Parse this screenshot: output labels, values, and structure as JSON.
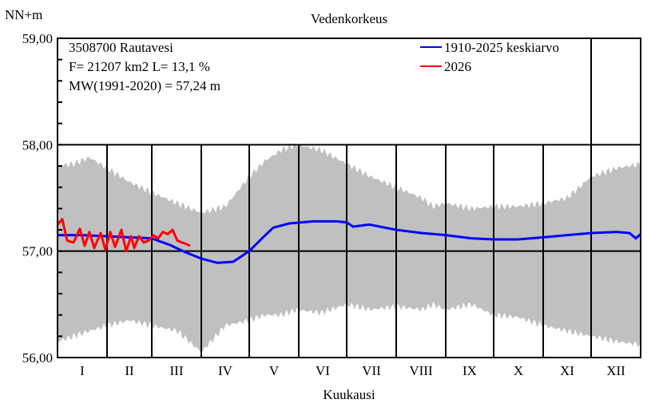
{
  "chart_data": {
    "type": "area",
    "title": "Vedenkorkeus",
    "ylabel": "NN+m",
    "xlabel": "Kuukausi",
    "ylim": [
      56,
      59
    ],
    "yticks": [
      "56,00",
      "57,00",
      "58,00",
      "59,00"
    ],
    "ytick_values": [
      56,
      57,
      58,
      59
    ],
    "months": [
      "I",
      "II",
      "III",
      "IV",
      "V",
      "VI",
      "VII",
      "VIII",
      "IX",
      "X",
      "XI",
      "XII"
    ],
    "info": [
      "3508700 Rautavesi",
      "F=  21207 km2 L=  13,1 %",
      "MW(1991-2020) = 57,24 m"
    ],
    "colors": {
      "band": "#c0c0c0",
      "mean": "#0000ff",
      "current": "#ff0000"
    },
    "band": {
      "day": [
        0,
        10,
        20,
        31,
        45,
        59,
        75,
        90,
        105,
        120,
        130,
        140,
        150,
        165,
        181,
        196,
        212,
        228,
        235,
        243,
        259,
        273,
        288,
        304,
        319,
        334,
        350,
        365
      ],
      "max": [
        57.8,
        57.82,
        57.88,
        57.78,
        57.65,
        57.55,
        57.45,
        57.36,
        57.42,
        57.7,
        57.85,
        57.95,
        58.0,
        57.95,
        57.82,
        57.7,
        57.6,
        57.5,
        57.42,
        57.45,
        57.4,
        57.42,
        57.42,
        57.45,
        57.5,
        57.7,
        57.78,
        57.82
      ],
      "min": [
        56.15,
        56.2,
        56.25,
        56.3,
        56.35,
        56.3,
        56.25,
        56.05,
        56.3,
        56.35,
        56.4,
        56.4,
        56.45,
        56.42,
        56.5,
        56.45,
        56.48,
        56.45,
        56.5,
        56.45,
        56.5,
        56.4,
        56.38,
        56.3,
        56.25,
        56.2,
        56.15,
        56.12
      ]
    },
    "series": [
      {
        "name": "1910-2025 keskiarvo",
        "color": "#0000ff",
        "day": [
          0,
          15,
          31,
          45,
          59,
          70,
          80,
          90,
          100,
          110,
          120,
          128,
          135,
          145,
          160,
          175,
          181,
          185,
          195,
          212,
          228,
          243,
          259,
          273,
          288,
          304,
          319,
          334,
          350,
          358,
          362,
          365
        ],
        "values": [
          57.15,
          57.15,
          57.14,
          57.13,
          57.12,
          57.06,
          56.99,
          56.93,
          56.89,
          56.9,
          57.0,
          57.12,
          57.22,
          57.26,
          57.28,
          57.28,
          57.27,
          57.23,
          57.25,
          57.2,
          57.17,
          57.15,
          57.12,
          57.11,
          57.11,
          57.13,
          57.15,
          57.17,
          57.18,
          57.17,
          57.12,
          57.16
        ]
      },
      {
        "name": "2026",
        "color": "#ff0000",
        "day": [
          0,
          3,
          6,
          10,
          14,
          17,
          20,
          23,
          27,
          30,
          33,
          36,
          40,
          43,
          46,
          48,
          51,
          54,
          57,
          60,
          63,
          66,
          69,
          72,
          75,
          78,
          80,
          83
        ],
        "values": [
          57.25,
          57.3,
          57.1,
          57.08,
          57.21,
          57.05,
          57.18,
          57.03,
          57.17,
          57.01,
          57.18,
          57.04,
          57.2,
          57.0,
          57.14,
          57.03,
          57.14,
          57.08,
          57.1,
          57.15,
          57.12,
          57.18,
          57.16,
          57.2,
          57.1,
          57.08,
          57.07,
          57.05
        ]
      }
    ]
  }
}
